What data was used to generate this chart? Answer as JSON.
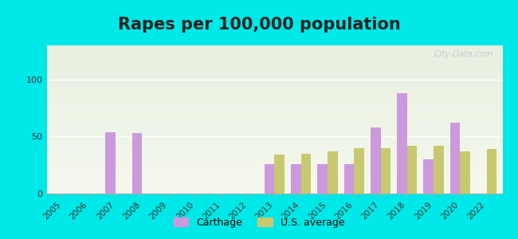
{
  "title": "Rapes per 100,000 population",
  "title_fontsize": 15,
  "background_color": "#00e8e8",
  "plot_bg_top": "#e8f0e0",
  "plot_bg_bottom": "#f5f8ee",
  "years": [
    2005,
    2006,
    2007,
    2008,
    2009,
    2010,
    2011,
    2012,
    2013,
    2014,
    2015,
    2016,
    2017,
    2018,
    2019,
    2020,
    2022
  ],
  "carthage": [
    0,
    0,
    54,
    53,
    0,
    0,
    0,
    0,
    26,
    26,
    26,
    26,
    58,
    88,
    30,
    62,
    0
  ],
  "us_average": [
    0,
    0,
    0,
    0,
    0,
    0,
    0,
    0,
    34,
    35,
    37,
    40,
    40,
    42,
    42,
    37,
    39
  ],
  "carthage_color": "#cc99dd",
  "us_avg_color": "#c8c870",
  "ylim": [
    0,
    130
  ],
  "yticks": [
    0,
    50,
    100
  ],
  "bar_width": 0.38,
  "legend_labels": [
    "Carthage",
    "U.S. average"
  ],
  "watermark": "City-Data.com"
}
